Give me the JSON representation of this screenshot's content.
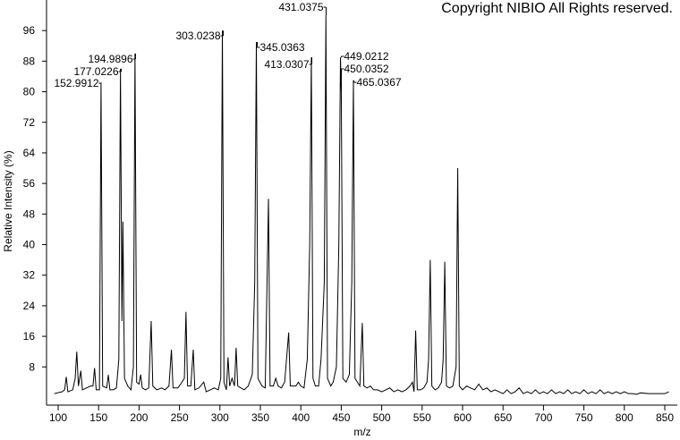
{
  "chart_data": {
    "type": "line",
    "watermark": "Copyright NIBIO All Rights reserved.",
    "x_label": "m/z",
    "y_label": "Relative Intensity (%)",
    "xlim": [
      85.6,
      865.5
    ],
    "ylim": [
      -2,
      104
    ],
    "xticks": [
      100,
      150,
      200,
      250,
      300,
      350,
      400,
      450,
      500,
      550,
      600,
      650,
      700,
      750,
      800,
      850
    ],
    "yticks": [
      8,
      16,
      24,
      32,
      40,
      48,
      56,
      64,
      72,
      80,
      88,
      96
    ],
    "annotations": [
      152.9912,
      177.0226,
      194.9896,
      303.0238,
      345.0363,
      413.0307,
      431.0375,
      449.0212,
      450.0352,
      465.0367
    ],
    "series": [
      {
        "color": "#000000",
        "x": [
          95,
          105,
          108,
          110,
          112,
          118,
          121,
          123,
          125,
          128,
          130,
          135,
          140,
          143,
          145,
          147,
          151,
          152.9912,
          155,
          160,
          162,
          164,
          168,
          172,
          175,
          177.0226,
          178.8,
          180,
          182,
          186,
          190,
          193,
          194.9896,
          197,
          200,
          202,
          204,
          208,
          212,
          215,
          217,
          222,
          228,
          232,
          237,
          240,
          242,
          248,
          253,
          256,
          258,
          260,
          264,
          267,
          269,
          274,
          280,
          283,
          288,
          293,
          298,
          301,
          303.0238,
          305,
          308,
          310,
          312,
          315,
          318,
          320,
          322,
          326,
          330,
          335,
          340,
          343,
          345.0363,
          347,
          352,
          356,
          360,
          362,
          366,
          369,
          372,
          376,
          380,
          385,
          387,
          390,
          394,
          397,
          400,
          404,
          408,
          411,
          413.0307,
          415,
          418,
          422,
          425,
          429,
          431.0375,
          433,
          437,
          440,
          444,
          447,
          449.0212,
          450.0352,
          452,
          456,
          460,
          463,
          465.0367,
          467,
          470,
          473,
          476,
          478,
          482,
          486,
          490,
          495,
          500,
          505,
          510,
          515,
          520,
          525,
          530,
          535,
          538,
          540,
          542,
          544,
          548,
          552,
          556,
          558,
          560,
          562,
          566,
          570,
          574,
          576,
          578,
          580,
          584,
          588,
          592,
          594,
          596,
          600,
          605,
          610,
          615,
          620,
          625,
          630,
          635,
          640,
          645,
          650,
          655,
          660,
          665,
          670,
          675,
          680,
          685,
          690,
          695,
          700,
          705,
          710,
          715,
          720,
          725,
          730,
          735,
          740,
          745,
          750,
          755,
          760,
          765,
          770,
          775,
          780,
          785,
          790,
          795,
          800,
          805,
          810,
          815,
          820,
          830,
          840,
          850,
          855
        ],
        "values": [
          1,
          1.5,
          2,
          5.4,
          1.5,
          2,
          5,
          12,
          3,
          7,
          2,
          2.5,
          3,
          3,
          7.7,
          2,
          2,
          82.3,
          3,
          2.5,
          5.9,
          2,
          2,
          2.5,
          10,
          86,
          20,
          46,
          5,
          3,
          2,
          8,
          90,
          4,
          3.5,
          6,
          2.5,
          2,
          2.5,
          20,
          3,
          2,
          2.5,
          2,
          3,
          12.5,
          2.5,
          2.5,
          4,
          5,
          22.4,
          3,
          3,
          12.5,
          2,
          2.5,
          4,
          1.5,
          2,
          2.5,
          2,
          5,
          96,
          4,
          2,
          10.5,
          3,
          5,
          3,
          13,
          3,
          2.5,
          2,
          3,
          6,
          30,
          93,
          5,
          3,
          2.5,
          52,
          3,
          3,
          5,
          3,
          2.5,
          4,
          17,
          3,
          3,
          3,
          4,
          3,
          2.5,
          10,
          40,
          89,
          5,
          3,
          3,
          10,
          30,
          100,
          5,
          3,
          4,
          8,
          40,
          89,
          80,
          5,
          4,
          6,
          30,
          83,
          5,
          4,
          3,
          19.5,
          3,
          2.5,
          3,
          2,
          2,
          1.5,
          2,
          2.5,
          1.5,
          2,
          1.5,
          2,
          3,
          4,
          1.5,
          17.5,
          2,
          2,
          2.5,
          4,
          10,
          36,
          3,
          2,
          2.5,
          4,
          10,
          35.5,
          3,
          2.5,
          3,
          8,
          60,
          3,
          2,
          3,
          2.5,
          2,
          3.5,
          2,
          2.5,
          1.5,
          2,
          1.5,
          1,
          2,
          1,
          1.5,
          2.5,
          1,
          1.5,
          1,
          2,
          1,
          1.5,
          1,
          2,
          1,
          1.5,
          1,
          2,
          1,
          1.5,
          1,
          2,
          1,
          1.5,
          1,
          2,
          1,
          1.5,
          1,
          1.5,
          1,
          1.5,
          1,
          1,
          0.8,
          1.2,
          1,
          1,
          1,
          1.5
        ]
      }
    ]
  }
}
